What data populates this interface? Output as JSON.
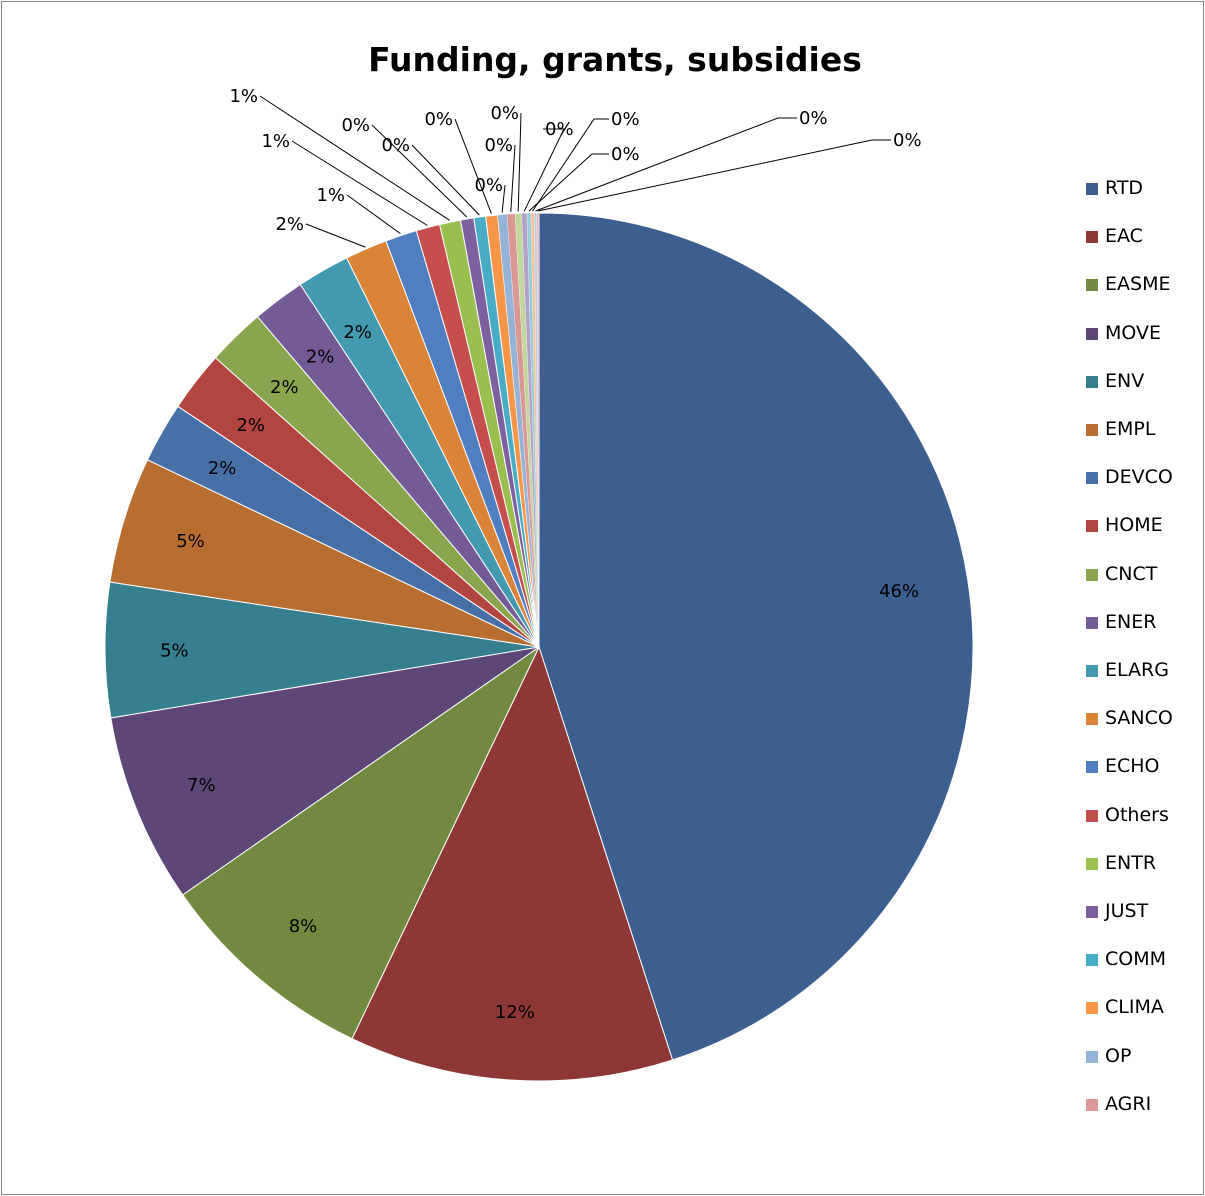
{
  "chart_data": {
    "type": "pie",
    "title": "Funding, grants, subsidies",
    "legend_position": "right",
    "series": [
      {
        "name": "RTD",
        "value": 45.9,
        "label": "46%",
        "color": "#3c5f8f"
      },
      {
        "name": "EAC",
        "value": 12.3,
        "label": "12%",
        "color": "#8d3837"
      },
      {
        "name": "EASME",
        "value": 8.4,
        "label": "8%",
        "color": "#728a3f"
      },
      {
        "name": "MOVE",
        "value": 7.2,
        "label": "7%",
        "color": "#5c4777"
      },
      {
        "name": "ENV",
        "value": 5.1,
        "label": "5%",
        "color": "#357f8f"
      },
      {
        "name": "EMPL",
        "value": 4.8,
        "label": "5%",
        "color": "#b86e31"
      },
      {
        "name": "DEVCO",
        "value": 2.3,
        "label": "2%",
        "color": "#4770a8"
      },
      {
        "name": "HOME",
        "value": 2.3,
        "label": "2%",
        "color": "#b34540"
      },
      {
        "name": "CNCT",
        "value": 2.2,
        "label": "2%",
        "color": "#89a64e"
      },
      {
        "name": "ENER",
        "value": 2.0,
        "label": "2%",
        "color": "#735b95"
      },
      {
        "name": "ELARG",
        "value": 2.0,
        "label": "2%",
        "color": "#4299b0"
      },
      {
        "name": "SANCO",
        "value": 1.6,
        "label": "2%",
        "color": "#db8438"
      },
      {
        "name": "ECHO",
        "value": 1.2,
        "label": "1%",
        "color": "#4f7fc0"
      },
      {
        "name": "Others",
        "value": 0.9,
        "label": "1%",
        "color": "#c64e4c"
      },
      {
        "name": "ENTR",
        "value": 0.8,
        "label": "1%",
        "color": "#99bf4f"
      },
      {
        "name": "JUST",
        "value": 0.5,
        "label": "0%",
        "color": "#7e60a0"
      },
      {
        "name": "COMM",
        "value": 0.45,
        "label": "0%",
        "color": "#48acc6"
      },
      {
        "name": "CLIMA",
        "value": 0.45,
        "label": "0%",
        "color": "#f79646"
      },
      {
        "name": "OP",
        "value": 0.35,
        "label": "0%",
        "color": "#95b3d7"
      },
      {
        "name": "AGRI",
        "value": 0.3,
        "label": "0%",
        "color": "#d99795"
      },
      {
        "name": "",
        "value": 0.25,
        "label": "0%",
        "color": "#c3d69b"
      },
      {
        "name": "",
        "value": 0.2,
        "label": "0%",
        "color": "#b2a2c7"
      },
      {
        "name": "",
        "value": 0.15,
        "label": "0%",
        "color": "#92cddc"
      },
      {
        "name": "",
        "value": 0.12,
        "label": "0%",
        "color": "#fac08f"
      },
      {
        "name": "",
        "value": 0.1,
        "label": "0%",
        "color": "#b9cde5"
      },
      {
        "name": "",
        "value": 0.08,
        "label": "0%",
        "color": "#e6b9b8"
      }
    ]
  }
}
